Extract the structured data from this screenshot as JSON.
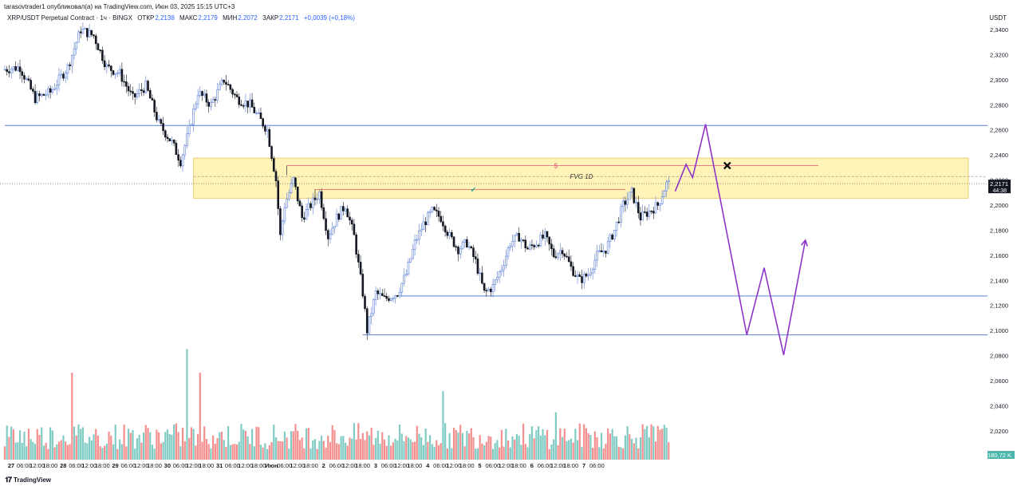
{
  "header": {
    "published": "tarasovtrader1 опубликовал(а) на TradingView.com, Июн 03, 2025 15:15 UTC+3"
  },
  "symbol": {
    "name": "XRP/USDT Perpetual Contract · 1ч · BINGX",
    "open_label": "ОТКР",
    "open": "2,2138",
    "high_label": "МАКС",
    "high": "2,2179",
    "low_label": "МИН",
    "low": "2,2072",
    "close_label": "ЗАКР",
    "close": "2,2171",
    "change": "+0,0039 (+0,18%)"
  },
  "currency": "USDT",
  "footer": {
    "brand": "TradingView",
    "logo_icon": "tradingview-logo-icon"
  },
  "colors": {
    "up": "#26a69a",
    "down": "#131722",
    "hollow_up_stroke": "#5b7fd6",
    "volume_up": "#80cbc4",
    "volume_down": "#f48f8f",
    "level_line": "#5b7fd6",
    "fvg_fill": "#fff3b8",
    "fvg_border": "#e8c35a",
    "projection": "#8e34c9",
    "last_price_bg": "#131722"
  },
  "chart_data": {
    "type": "candlestick",
    "price_axis": {
      "ticks": [
        "2,3400",
        "2,3200",
        "2,3000",
        "2,2800",
        "2,2600",
        "2,2400",
        "2,2200",
        "2,2000",
        "2,1800",
        "2,1600",
        "2,1400",
        "2,1200",
        "2,1000",
        "2,0800",
        "2,0600",
        "2,0400",
        "2,0200"
      ],
      "tick_values": [
        2.34,
        2.32,
        2.3,
        2.28,
        2.26,
        2.24,
        2.22,
        2.2,
        2.18,
        2.16,
        2.14,
        2.12,
        2.1,
        2.08,
        2.06,
        2.04,
        2.02
      ],
      "range": [
        2.004,
        2.354
      ]
    },
    "time_axis": {
      "ticks": [
        "27",
        "06:00",
        "12:00",
        "18:00",
        "28",
        "06:00",
        "12:00",
        "18:00",
        "29",
        "06:00",
        "12:00",
        "18:00",
        "30",
        "06:00",
        "12:00",
        "18:00",
        "31",
        "06:00",
        "12:00",
        "18:00",
        "Июн",
        "06:00",
        "12:00",
        "18:00",
        "2",
        "06:00",
        "12:00",
        "18:00",
        "3",
        "06:00",
        "12:00",
        "18:00",
        "4",
        "06:00",
        "12:00",
        "18:00",
        "5",
        "06:00",
        "12:00",
        "18:00",
        "6",
        "06:00",
        "12:00",
        "18:00",
        "7",
        "06:00"
      ],
      "bold_ticks": [
        0,
        4,
        8,
        12,
        16,
        20,
        24,
        28,
        32,
        36,
        40,
        44
      ],
      "bars_per_tick": 6
    },
    "last_price": {
      "value": 2.2171,
      "label": "2,2171",
      "countdown": "44:38"
    },
    "volume_last": "180,72 K",
    "levels": [
      {
        "price": 2.2635,
        "start_bar": 0
      },
      {
        "price": 2.1275,
        "start_bar": 180
      },
      {
        "price": 2.0965,
        "start_bar": 165
      }
    ],
    "fvg_zone": {
      "label": "FVG 1D",
      "top": 2.2375,
      "bottom": 2.2055,
      "start_bar": 87,
      "mid_price": 2.2228
    },
    "liquidity_lines": [
      {
        "price": 2.2315,
        "start_bar": 130,
        "end_bar": 375,
        "marker": "$",
        "marker_bar": 254
      },
      {
        "price": 2.2125,
        "start_bar": 143,
        "end_bar": 286,
        "marker": "✔",
        "marker_bar": 216
      }
    ],
    "close_prev_line": 2.2171,
    "projection_x": {
      "bar": 333,
      "price": 2.2315
    },
    "projection_path": [
      {
        "bar": 309,
        "price": 2.211
      },
      {
        "bar": 314,
        "price": 2.2325
      },
      {
        "bar": 317,
        "price": 2.222
      },
      {
        "bar": 323,
        "price": 2.2645
      },
      {
        "bar": 342,
        "price": 2.0965
      },
      {
        "bar": 350,
        "price": 2.15
      },
      {
        "bar": 359,
        "price": 2.0805
      },
      {
        "bar": 369,
        "price": 2.172
      }
    ],
    "price_path": [
      [
        0,
        2.308
      ],
      [
        8,
        2.31
      ],
      [
        15,
        2.285
      ],
      [
        22,
        2.29
      ],
      [
        30,
        2.31
      ],
      [
        36,
        2.34
      ],
      [
        42,
        2.335
      ],
      [
        48,
        2.31
      ],
      [
        54,
        2.305
      ],
      [
        60,
        2.285
      ],
      [
        66,
        2.295
      ],
      [
        72,
        2.265
      ],
      [
        78,
        2.25
      ],
      [
        82,
        2.235
      ],
      [
        86,
        2.26
      ],
      [
        90,
        2.29
      ],
      [
        96,
        2.28
      ],
      [
        102,
        2.3
      ],
      [
        108,
        2.285
      ],
      [
        114,
        2.28
      ],
      [
        118,
        2.27
      ],
      [
        122,
        2.26
      ],
      [
        126,
        2.22
      ],
      [
        128,
        2.175
      ],
      [
        130,
        2.2
      ],
      [
        134,
        2.22
      ],
      [
        138,
        2.19
      ],
      [
        142,
        2.2
      ],
      [
        146,
        2.21
      ],
      [
        150,
        2.175
      ],
      [
        154,
        2.19
      ],
      [
        158,
        2.2
      ],
      [
        162,
        2.175
      ],
      [
        166,
        2.13
      ],
      [
        168,
        2.1
      ],
      [
        172,
        2.13
      ],
      [
        176,
        2.125
      ],
      [
        182,
        2.13
      ],
      [
        186,
        2.145
      ],
      [
        190,
        2.17
      ],
      [
        194,
        2.185
      ],
      [
        198,
        2.195
      ],
      [
        202,
        2.19
      ],
      [
        206,
        2.175
      ],
      [
        210,
        2.165
      ],
      [
        214,
        2.17
      ],
      [
        218,
        2.155
      ],
      [
        222,
        2.13
      ],
      [
        226,
        2.135
      ],
      [
        230,
        2.15
      ],
      [
        234,
        2.17
      ],
      [
        238,
        2.175
      ],
      [
        242,
        2.165
      ],
      [
        246,
        2.17
      ],
      [
        250,
        2.175
      ],
      [
        254,
        2.16
      ],
      [
        258,
        2.165
      ],
      [
        262,
        2.15
      ],
      [
        266,
        2.14
      ],
      [
        270,
        2.145
      ],
      [
        274,
        2.16
      ],
      [
        278,
        2.165
      ],
      [
        282,
        2.18
      ],
      [
        286,
        2.2
      ],
      [
        290,
        2.21
      ],
      [
        294,
        2.19
      ],
      [
        298,
        2.195
      ],
      [
        302,
        2.2
      ],
      [
        306,
        2.2171
      ]
    ],
    "volume_spikes": [
      [
        31,
        0.33
      ],
      [
        84,
        0.42
      ],
      [
        90,
        0.33
      ],
      [
        202,
        0.26
      ],
      [
        254,
        0.18
      ],
      [
        310,
        0.14
      ]
    ],
    "n_bars": 307
  }
}
